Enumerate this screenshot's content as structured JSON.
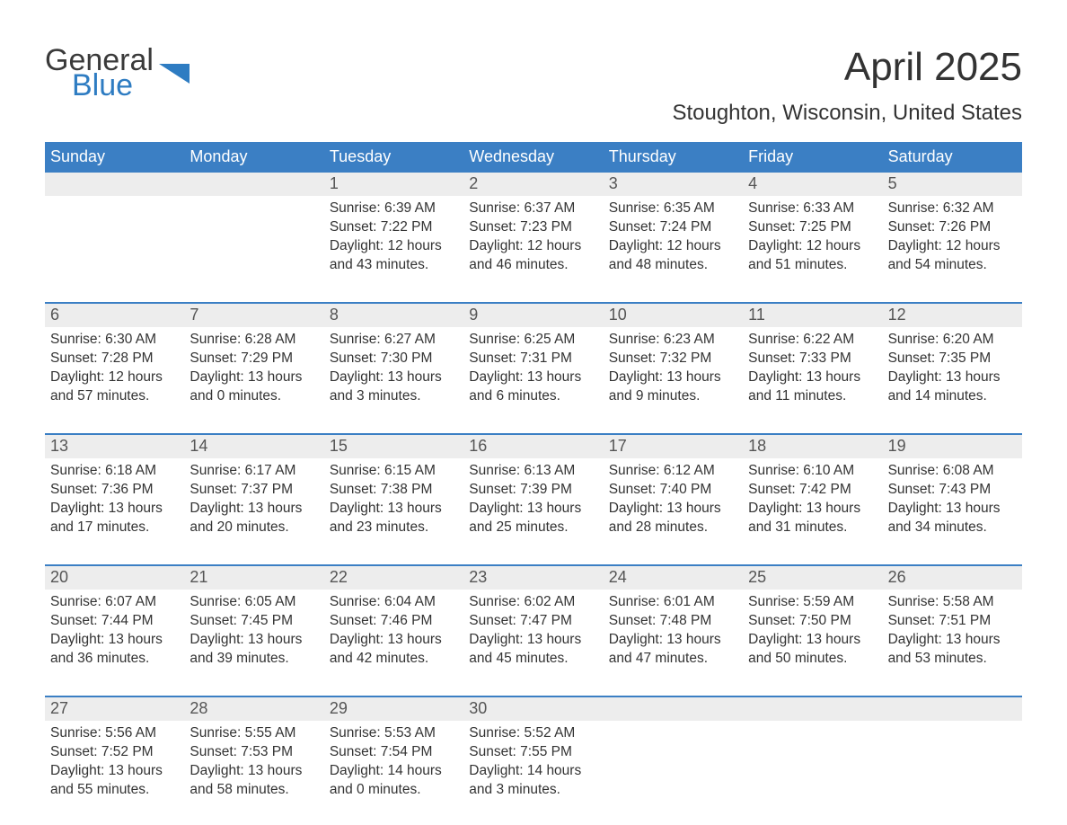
{
  "logo": {
    "word1": "General",
    "word2": "Blue"
  },
  "title": "April 2025",
  "location": "Stoughton, Wisconsin, United States",
  "colors": {
    "header_bg": "#3b7fc4",
    "header_text": "#ffffff",
    "daynum_bg": "#ededed",
    "week_border": "#3b7fc4",
    "body_text": "#333333",
    "logo_blue": "#2e7cc2",
    "logo_dark": "#3a3a3a",
    "background": "#ffffff"
  },
  "typography": {
    "title_fontsize": 44,
    "location_fontsize": 24,
    "weekday_fontsize": 18,
    "daynum_fontsize": 18,
    "cell_fontsize": 15.5,
    "logo_fontsize": 34
  },
  "weekdays": [
    "Sunday",
    "Monday",
    "Tuesday",
    "Wednesday",
    "Thursday",
    "Friday",
    "Saturday"
  ],
  "weeks": [
    [
      null,
      null,
      {
        "n": "1",
        "sr": "6:39 AM",
        "ss": "7:22 PM",
        "dl": "12 hours and 43 minutes."
      },
      {
        "n": "2",
        "sr": "6:37 AM",
        "ss": "7:23 PM",
        "dl": "12 hours and 46 minutes."
      },
      {
        "n": "3",
        "sr": "6:35 AM",
        "ss": "7:24 PM",
        "dl": "12 hours and 48 minutes."
      },
      {
        "n": "4",
        "sr": "6:33 AM",
        "ss": "7:25 PM",
        "dl": "12 hours and 51 minutes."
      },
      {
        "n": "5",
        "sr": "6:32 AM",
        "ss": "7:26 PM",
        "dl": "12 hours and 54 minutes."
      }
    ],
    [
      {
        "n": "6",
        "sr": "6:30 AM",
        "ss": "7:28 PM",
        "dl": "12 hours and 57 minutes."
      },
      {
        "n": "7",
        "sr": "6:28 AM",
        "ss": "7:29 PM",
        "dl": "13 hours and 0 minutes."
      },
      {
        "n": "8",
        "sr": "6:27 AM",
        "ss": "7:30 PM",
        "dl": "13 hours and 3 minutes."
      },
      {
        "n": "9",
        "sr": "6:25 AM",
        "ss": "7:31 PM",
        "dl": "13 hours and 6 minutes."
      },
      {
        "n": "10",
        "sr": "6:23 AM",
        "ss": "7:32 PM",
        "dl": "13 hours and 9 minutes."
      },
      {
        "n": "11",
        "sr": "6:22 AM",
        "ss": "7:33 PM",
        "dl": "13 hours and 11 minutes."
      },
      {
        "n": "12",
        "sr": "6:20 AM",
        "ss": "7:35 PM",
        "dl": "13 hours and 14 minutes."
      }
    ],
    [
      {
        "n": "13",
        "sr": "6:18 AM",
        "ss": "7:36 PM",
        "dl": "13 hours and 17 minutes."
      },
      {
        "n": "14",
        "sr": "6:17 AM",
        "ss": "7:37 PM",
        "dl": "13 hours and 20 minutes."
      },
      {
        "n": "15",
        "sr": "6:15 AM",
        "ss": "7:38 PM",
        "dl": "13 hours and 23 minutes."
      },
      {
        "n": "16",
        "sr": "6:13 AM",
        "ss": "7:39 PM",
        "dl": "13 hours and 25 minutes."
      },
      {
        "n": "17",
        "sr": "6:12 AM",
        "ss": "7:40 PM",
        "dl": "13 hours and 28 minutes."
      },
      {
        "n": "18",
        "sr": "6:10 AM",
        "ss": "7:42 PM",
        "dl": "13 hours and 31 minutes."
      },
      {
        "n": "19",
        "sr": "6:08 AM",
        "ss": "7:43 PM",
        "dl": "13 hours and 34 minutes."
      }
    ],
    [
      {
        "n": "20",
        "sr": "6:07 AM",
        "ss": "7:44 PM",
        "dl": "13 hours and 36 minutes."
      },
      {
        "n": "21",
        "sr": "6:05 AM",
        "ss": "7:45 PM",
        "dl": "13 hours and 39 minutes."
      },
      {
        "n": "22",
        "sr": "6:04 AM",
        "ss": "7:46 PM",
        "dl": "13 hours and 42 minutes."
      },
      {
        "n": "23",
        "sr": "6:02 AM",
        "ss": "7:47 PM",
        "dl": "13 hours and 45 minutes."
      },
      {
        "n": "24",
        "sr": "6:01 AM",
        "ss": "7:48 PM",
        "dl": "13 hours and 47 minutes."
      },
      {
        "n": "25",
        "sr": "5:59 AM",
        "ss": "7:50 PM",
        "dl": "13 hours and 50 minutes."
      },
      {
        "n": "26",
        "sr": "5:58 AM",
        "ss": "7:51 PM",
        "dl": "13 hours and 53 minutes."
      }
    ],
    [
      {
        "n": "27",
        "sr": "5:56 AM",
        "ss": "7:52 PM",
        "dl": "13 hours and 55 minutes."
      },
      {
        "n": "28",
        "sr": "5:55 AM",
        "ss": "7:53 PM",
        "dl": "13 hours and 58 minutes."
      },
      {
        "n": "29",
        "sr": "5:53 AM",
        "ss": "7:54 PM",
        "dl": "14 hours and 0 minutes."
      },
      {
        "n": "30",
        "sr": "5:52 AM",
        "ss": "7:55 PM",
        "dl": "14 hours and 3 minutes."
      },
      null,
      null,
      null
    ]
  ],
  "labels": {
    "sunrise": "Sunrise: ",
    "sunset": "Sunset: ",
    "daylight": "Daylight: "
  }
}
